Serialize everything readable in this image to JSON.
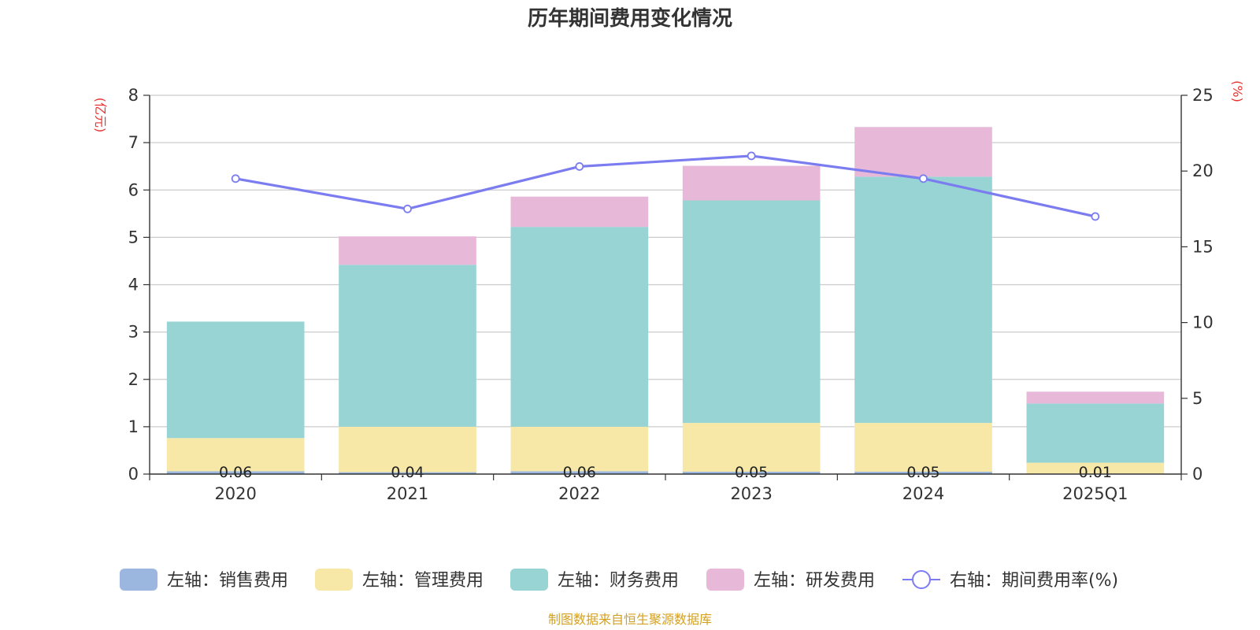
{
  "chart_data": {
    "type": "bar",
    "title": "历年期间费用变化情况",
    "categories": [
      "2020",
      "2021",
      "2022",
      "2023",
      "2024",
      "2025Q1"
    ],
    "left_axis": {
      "unit": "(亿元)",
      "ylim": [
        0,
        8
      ],
      "ticks": [
        "0",
        "1",
        "2",
        "3",
        "4",
        "5",
        "6",
        "7",
        "8"
      ]
    },
    "right_axis": {
      "unit": "(%)",
      "ylim": [
        0,
        25
      ],
      "ticks": [
        "0",
        "5",
        "10",
        "15",
        "20",
        "25"
      ]
    },
    "grid": true,
    "series": [
      {
        "name": "左轴：销售费用",
        "kind": "bar",
        "axis": "left",
        "color": "#9bb7e0",
        "values": [
          0.06,
          0.04,
          0.06,
          0.05,
          0.05,
          0.01
        ],
        "labels": [
          "0.06",
          "0.04",
          "0.06",
          "0.05",
          "0.05",
          "0.01"
        ]
      },
      {
        "name": "左轴：管理费用",
        "kind": "bar",
        "axis": "left",
        "color": "#f7e8a8",
        "values": [
          0.7,
          0.96,
          0.94,
          1.03,
          1.03,
          0.23
        ]
      },
      {
        "name": "左轴：财务费用",
        "kind": "bar",
        "axis": "left",
        "color": "#98d4d4",
        "values": [
          2.46,
          3.42,
          4.22,
          4.7,
          5.2,
          1.25
        ]
      },
      {
        "name": "左轴：研发费用",
        "kind": "bar",
        "axis": "left",
        "color": "#e8b8d8",
        "values": [
          0.0,
          0.6,
          0.64,
          0.73,
          1.05,
          0.25
        ]
      },
      {
        "name": "右轴：期间费用率(%)",
        "kind": "line",
        "axis": "right",
        "color": "#7b7cf0",
        "values": [
          19.5,
          17.5,
          20.3,
          21.0,
          19.5,
          17.0
        ]
      }
    ],
    "legend_position": "bottom"
  },
  "source_note": "制图数据来自恒生聚源数据库",
  "colors": {
    "axis_unit": "#e8322e",
    "source": "#d4a020",
    "grid": "#cccccc",
    "axis": "#333333"
  }
}
